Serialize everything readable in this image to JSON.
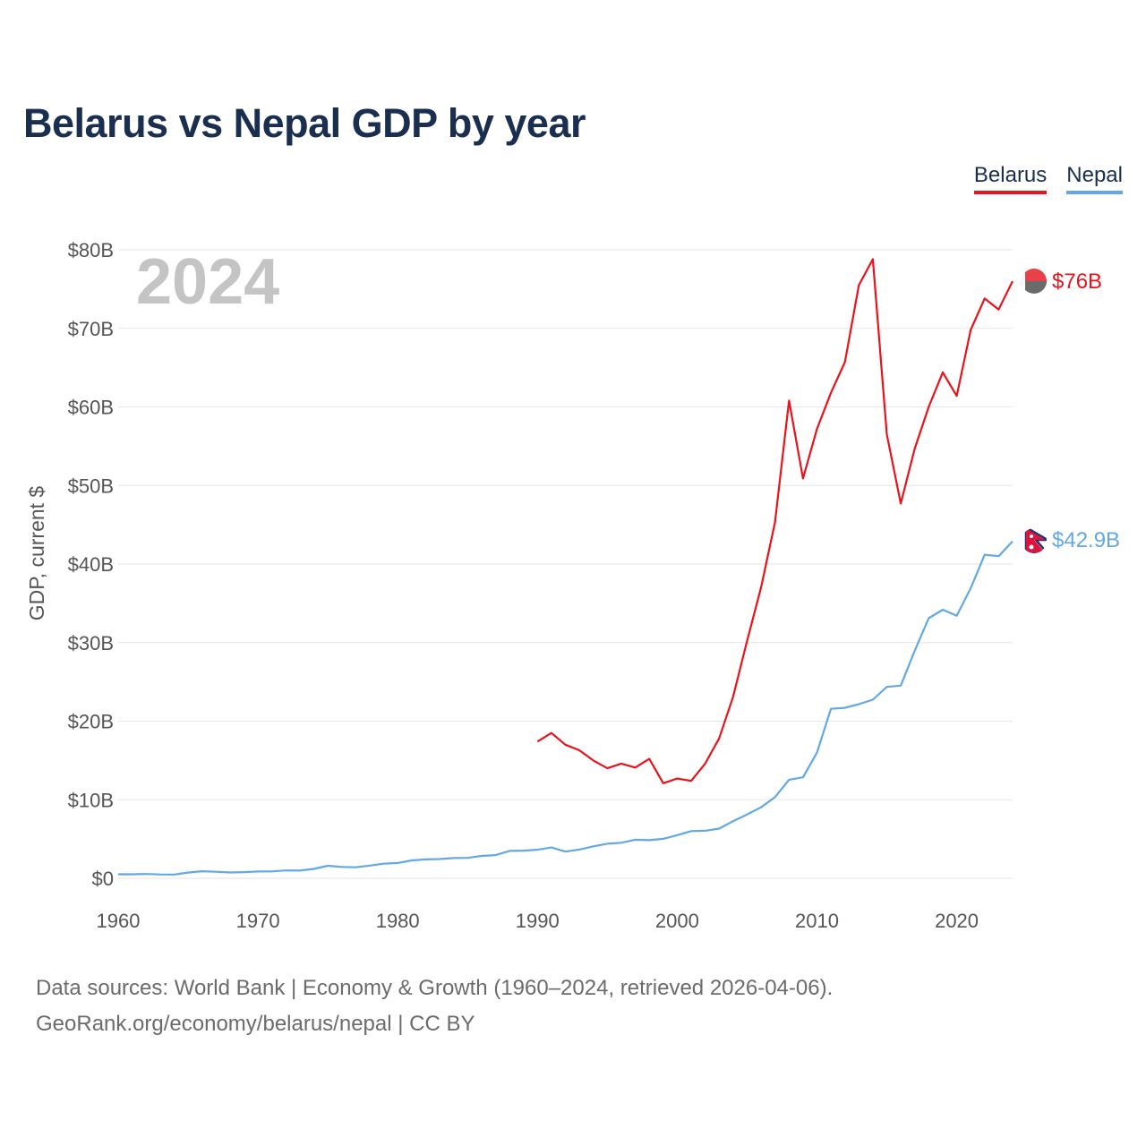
{
  "title": "Belarus vs Nepal GDP by year",
  "footer": {
    "line1": "Data sources: World Bank | Economy & Growth (1960–2024, retrieved 2026-04-06).",
    "line2": "GeoRank.org/economy/belarus/nepal | CC BY"
  },
  "chart_data": {
    "type": "line",
    "title": "Belarus vs Nepal GDP by year",
    "xlabel": "",
    "ylabel": "GDP, current $",
    "year_label": "2024",
    "xlim": [
      1960,
      2024
    ],
    "ylim": [
      0,
      80
    ],
    "x_ticks": [
      1960,
      1970,
      1980,
      1990,
      2000,
      2010,
      2020
    ],
    "y_ticks": [
      {
        "value": 0,
        "label": "$0"
      },
      {
        "value": 10,
        "label": "$10B"
      },
      {
        "value": 20,
        "label": "$20B"
      },
      {
        "value": 30,
        "label": "$30B"
      },
      {
        "value": 40,
        "label": "$40B"
      },
      {
        "value": 50,
        "label": "$50B"
      },
      {
        "value": 60,
        "label": "$60B"
      },
      {
        "value": 70,
        "label": "$70B"
      },
      {
        "value": 80,
        "label": "$80B"
      }
    ],
    "grid": true,
    "legend_position": "top-right",
    "series": [
      {
        "name": "Belarus",
        "color": "#e8141c",
        "end_label": "$76B",
        "x": [
          1990,
          1991,
          1992,
          1993,
          1994,
          1995,
          1996,
          1997,
          1998,
          1999,
          2000,
          2001,
          2002,
          2003,
          2004,
          2005,
          2006,
          2007,
          2008,
          2009,
          2010,
          2011,
          2012,
          2013,
          2014,
          2015,
          2016,
          2017,
          2018,
          2019,
          2020,
          2021,
          2022,
          2023,
          2024
        ],
        "values": [
          17.4,
          18.5,
          17.0,
          16.3,
          15.0,
          14.0,
          14.6,
          14.1,
          15.2,
          12.1,
          12.7,
          12.4,
          14.6,
          17.8,
          23.1,
          30.2,
          37.0,
          45.3,
          60.8,
          50.9,
          57.2,
          61.8,
          65.7,
          75.5,
          78.8,
          56.5,
          47.7,
          54.7,
          60.0,
          64.4,
          61.4,
          69.8,
          73.8,
          72.4,
          76.0
        ]
      },
      {
        "name": "Nepal",
        "color": "#62a8e5",
        "end_label": "$42.9B",
        "x": [
          1960,
          1961,
          1962,
          1963,
          1964,
          1965,
          1966,
          1967,
          1968,
          1969,
          1970,
          1971,
          1972,
          1973,
          1974,
          1975,
          1976,
          1977,
          1978,
          1979,
          1980,
          1981,
          1982,
          1983,
          1984,
          1985,
          1986,
          1987,
          1988,
          1989,
          1990,
          1991,
          1992,
          1993,
          1994,
          1995,
          1996,
          1997,
          1998,
          1999,
          2000,
          2001,
          2002,
          2003,
          2004,
          2005,
          2006,
          2007,
          2008,
          2009,
          2010,
          2011,
          2012,
          2013,
          2014,
          2015,
          2016,
          2017,
          2018,
          2019,
          2020,
          2021,
          2022,
          2023,
          2024
        ],
        "values": [
          0.51,
          0.51,
          0.55,
          0.49,
          0.48,
          0.73,
          0.9,
          0.83,
          0.74,
          0.79,
          0.87,
          0.88,
          1.0,
          0.98,
          1.2,
          1.6,
          1.45,
          1.4,
          1.62,
          1.86,
          1.95,
          2.28,
          2.4,
          2.45,
          2.58,
          2.6,
          2.85,
          2.95,
          3.49,
          3.52,
          3.63,
          3.92,
          3.4,
          3.66,
          4.07,
          4.4,
          4.52,
          4.91,
          4.86,
          5.03,
          5.49,
          6.01,
          6.05,
          6.33,
          7.27,
          8.13,
          9.04,
          10.33,
          12.55,
          12.85,
          16.0,
          21.57,
          21.7,
          22.16,
          22.73,
          24.36,
          24.52,
          28.97,
          33.11,
          34.19,
          33.43,
          36.92,
          41.18,
          41.0,
          42.9
        ]
      }
    ]
  },
  "legend": {
    "items": [
      {
        "label": "Belarus",
        "color": "#e8141c"
      },
      {
        "label": "Nepal",
        "color": "#62a8e5"
      }
    ]
  },
  "flags": {
    "belarus": {
      "red": "#e8414a",
      "green": "#6b6b6b",
      "white": "#ffffff"
    },
    "nepal": {
      "red": "#dc143c",
      "blue": "#2b2d6e",
      "white": "#ffffff"
    }
  },
  "colors": {
    "title": "#1a2e4f",
    "grid": "#e6e6e6",
    "tick": "#555555",
    "footer": "#6b6b6b",
    "year_label": "#c4c4c4"
  }
}
